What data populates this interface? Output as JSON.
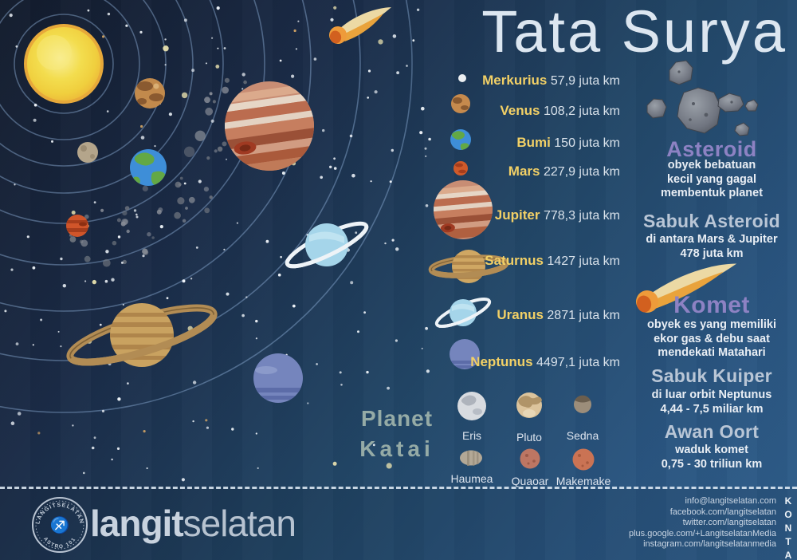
{
  "title": "Tata Surya",
  "planets": [
    {
      "name": "Merkurius",
      "distance": "57,9 juta km"
    },
    {
      "name": "Venus",
      "distance": "108,2 juta km"
    },
    {
      "name": "Bumi",
      "distance": "150 juta km"
    },
    {
      "name": "Mars",
      "distance": "227,9 juta km"
    },
    {
      "name": "Jupiter",
      "distance": "778,3 juta km"
    },
    {
      "name": "Saturnus",
      "distance": "1427 juta km"
    },
    {
      "name": "Uranus",
      "distance": "2871 juta km"
    },
    {
      "name": "Neptunus",
      "distance": "4497,1 juta km"
    }
  ],
  "dwarf": {
    "heading_line1": "Planet",
    "heading_line2": "Katai",
    "items": [
      "Eris",
      "Pluto",
      "Sedna",
      "Haumea",
      "Quaoar",
      "Makemake"
    ]
  },
  "sections": {
    "asteroid": {
      "heading": "Asteroid",
      "desc1": "obyek bebatuan",
      "desc2": "kecil yang gagal",
      "desc3": "membentuk planet"
    },
    "sabuk_asteroid": {
      "heading": "Sabuk Asteroid",
      "desc1": "di antara Mars & Jupiter",
      "desc2": "478 juta km"
    },
    "komet": {
      "heading": "Komet",
      "desc1": "obyek es yang memiliki",
      "desc2": "ekor gas & debu saat",
      "desc3": "mendekati Matahari"
    },
    "sabuk_kuiper": {
      "heading": "Sabuk Kuiper",
      "desc1": "di luar orbit Neptunus",
      "desc2": "4,44 - 7,5 miliar km"
    },
    "awan_oort": {
      "heading": "Awan Oort",
      "desc1": "waduk komet",
      "desc2": "0,75 - 30 triliun km"
    }
  },
  "footer": {
    "brand_bold": "langit",
    "brand_light": "selatan",
    "stamp_top": "LANGITSELATAN",
    "stamp_bottom": "ASTRO 101",
    "kontak": "KONTAK",
    "contacts": [
      "info@langitselatan.com",
      "facebook.com/langitselatan",
      "twitter.com/langitselatan",
      "plus.google.com/+LangitselatanMedia",
      "instagram.com/langitselatanmedia"
    ]
  },
  "colors": {
    "accent_yellow": "#f2d066",
    "accent_purple": "#8d82c3",
    "heading_gray": "#b9c6d6",
    "katai_green": "#95aba6",
    "bg_dark": "#121b2c",
    "bg_light": "#2f5e8b"
  }
}
